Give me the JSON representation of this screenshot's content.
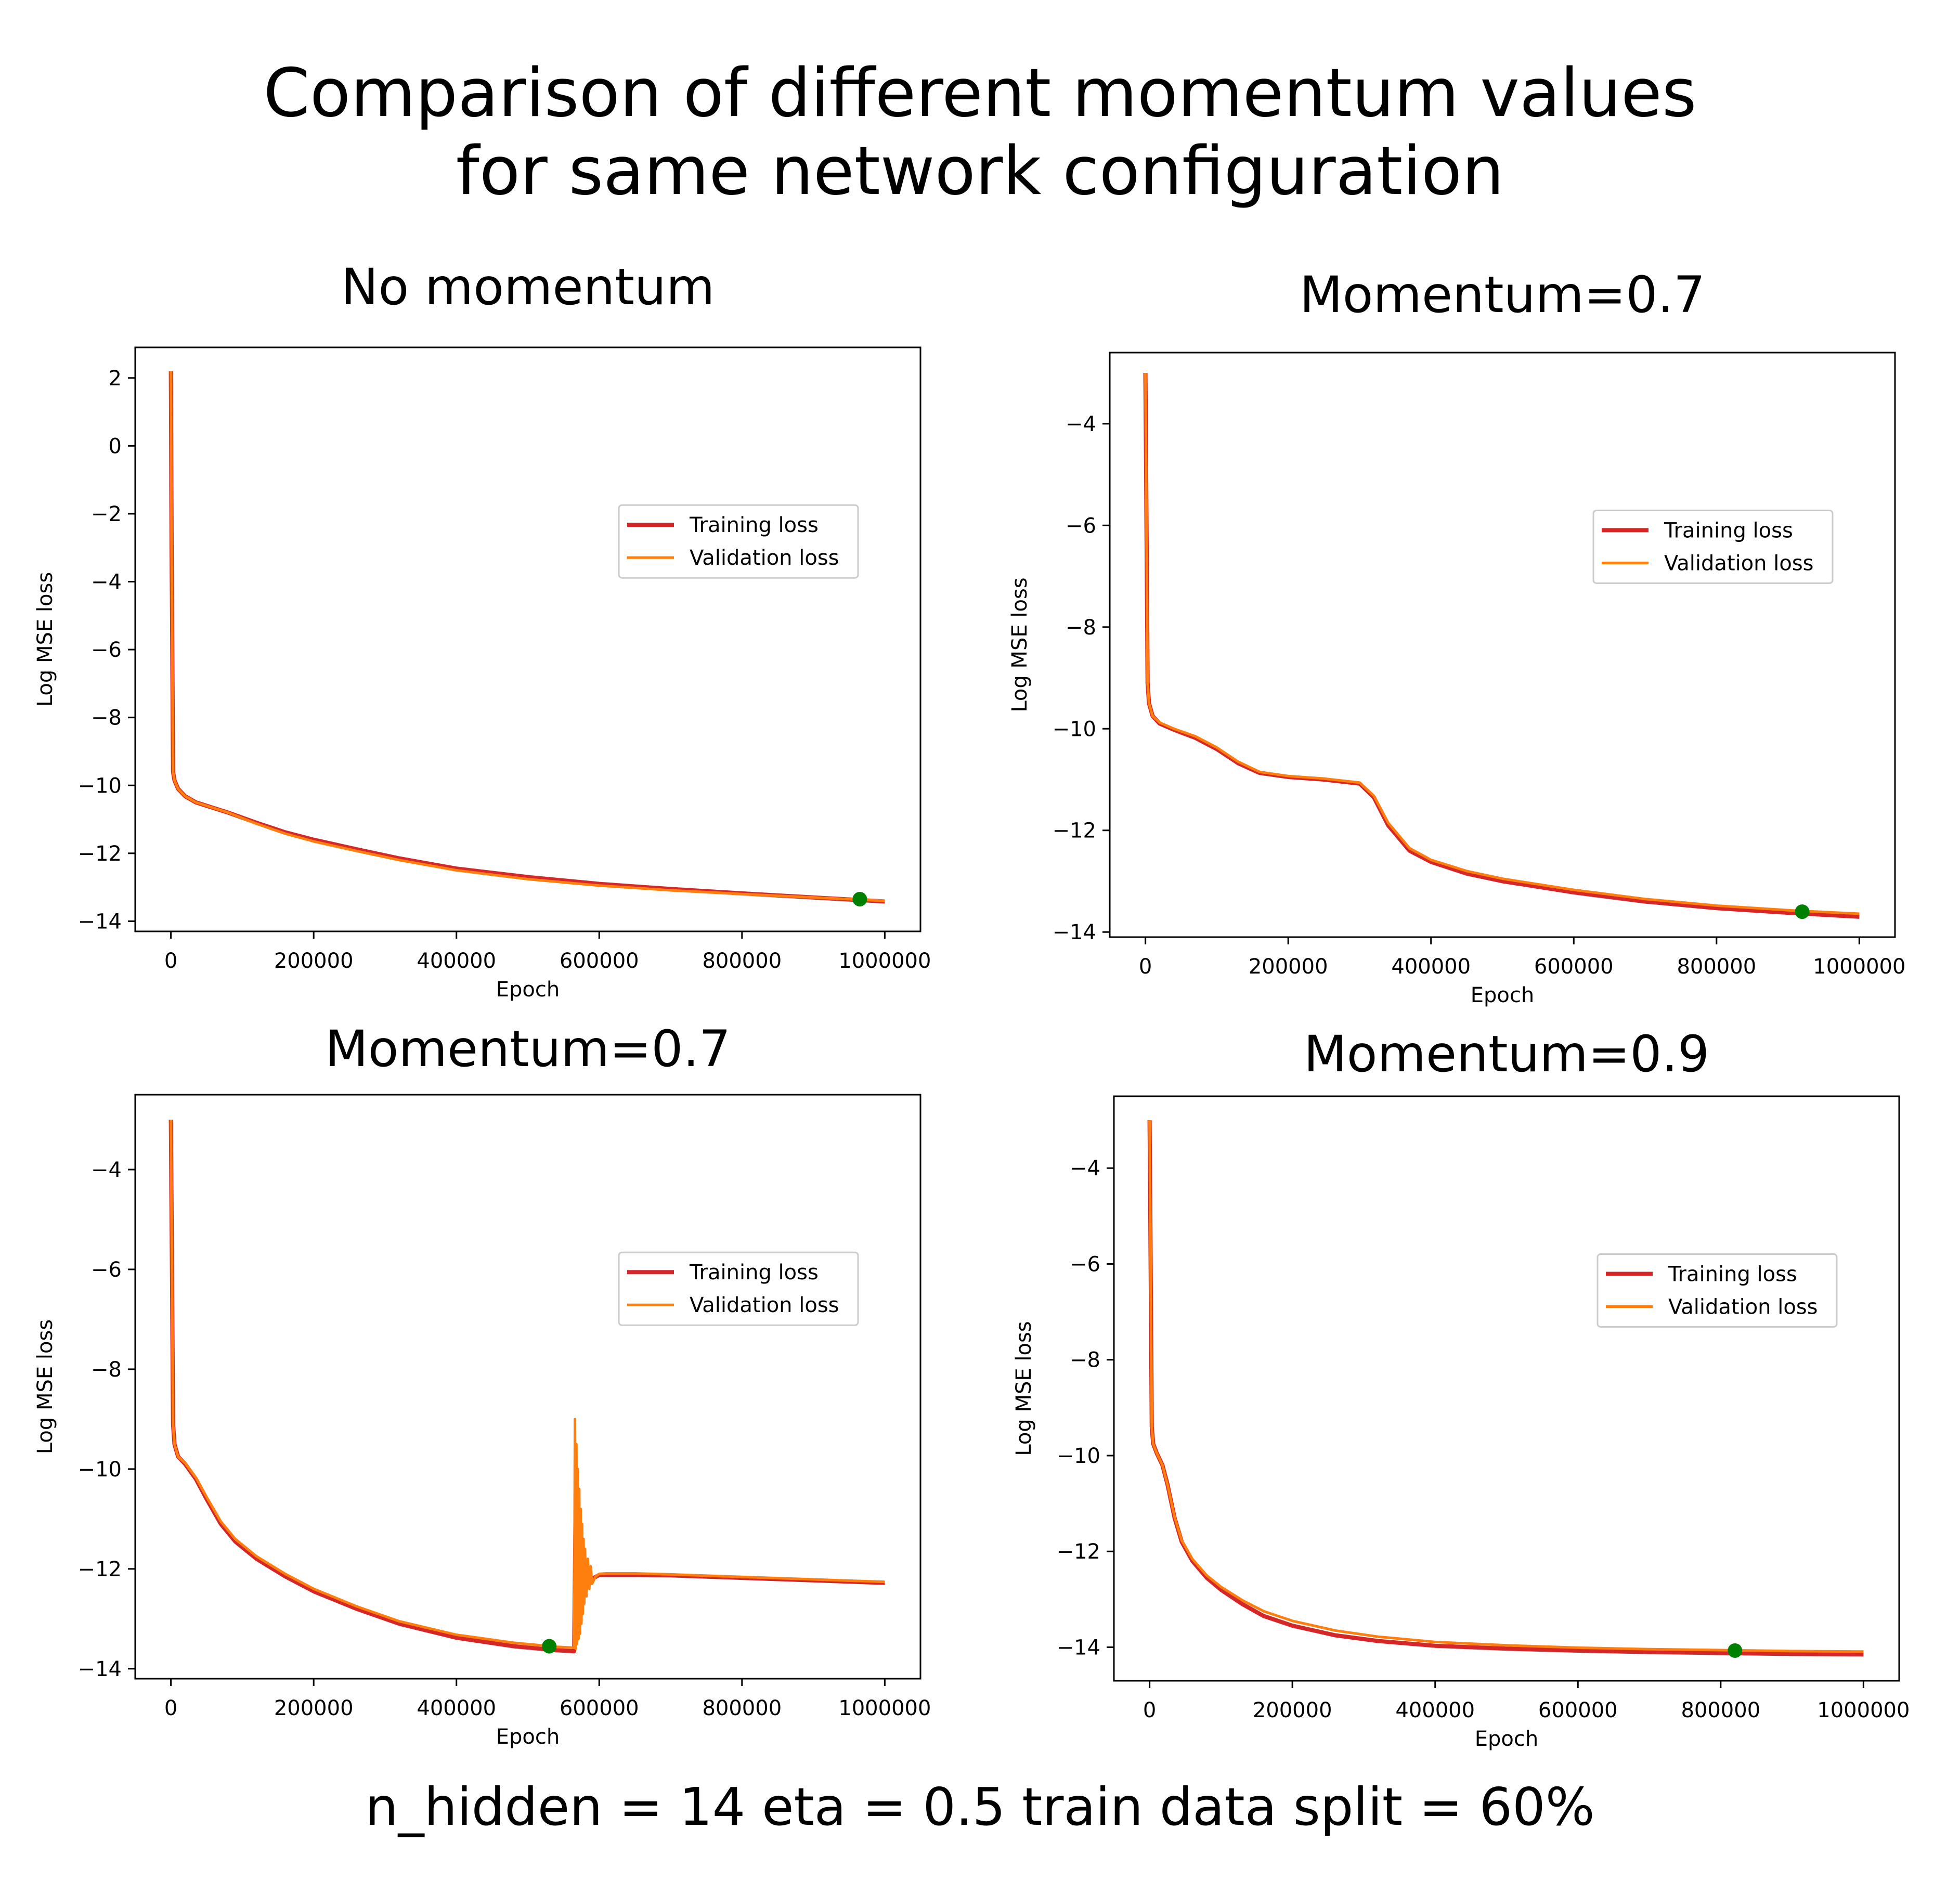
{
  "figure": {
    "title_line1": "Comparison of different momentum values",
    "title_line2": "for same network configuration",
    "footer": "n_hidden = 14 eta = 0.5 train data split = 60%"
  },
  "chart_data": [
    {
      "type": "line",
      "title": "No momentum",
      "xlabel": "Epoch",
      "ylabel": "Log MSE loss",
      "xlim": [
        -50000,
        1050000
      ],
      "ylim": [
        -14.3,
        2.9
      ],
      "xticks": [
        0,
        200000,
        400000,
        600000,
        800000,
        1000000
      ],
      "xtick_labels": [
        "0",
        "200000",
        "400000",
        "600000",
        "800000",
        "1000000"
      ],
      "yticks": [
        -14,
        -12,
        -10,
        -8,
        -6,
        -4,
        -2,
        0,
        2
      ],
      "ytick_labels": [
        "−14",
        "−12",
        "−10",
        "−8",
        "−6",
        "−4",
        "−2",
        "0",
        "2"
      ],
      "legend": {
        "location": "center-right",
        "entries": [
          "Training loss",
          "Validation loss"
        ]
      },
      "series": [
        {
          "name": "Training loss",
          "color": "#d62728",
          "x": [
            0,
            1000,
            3000,
            5000,
            10000,
            20000,
            35000,
            50000,
            80000,
            120000,
            160000,
            200000,
            260000,
            320000,
            400000,
            500000,
            600000,
            700000,
            800000,
            900000,
            1000000
          ],
          "y": [
            2.2,
            -3.0,
            -9.6,
            -9.85,
            -10.1,
            -10.32,
            -10.5,
            -10.6,
            -10.8,
            -11.1,
            -11.38,
            -11.6,
            -11.88,
            -12.15,
            -12.45,
            -12.7,
            -12.9,
            -13.05,
            -13.18,
            -13.3,
            -13.42
          ]
        },
        {
          "name": "Validation loss",
          "color": "#ff7f0e",
          "x": [
            0,
            1000,
            3000,
            5000,
            10000,
            20000,
            35000,
            50000,
            80000,
            120000,
            160000,
            200000,
            260000,
            320000,
            400000,
            500000,
            600000,
            700000,
            800000,
            900000,
            1000000
          ],
          "y": [
            2.2,
            -3.0,
            -9.6,
            -9.85,
            -10.1,
            -10.32,
            -10.5,
            -10.6,
            -10.8,
            -11.13,
            -11.42,
            -11.65,
            -11.93,
            -12.2,
            -12.5,
            -12.76,
            -12.95,
            -13.09,
            -13.2,
            -13.3,
            -13.4
          ]
        }
      ],
      "marker": {
        "x": 965000,
        "y": -13.35,
        "color": "#008000"
      }
    },
    {
      "type": "line",
      "title": "Momentum=0.7",
      "xlabel": "Epoch",
      "ylabel": "Log MSE loss",
      "xlim": [
        -50000,
        1050000
      ],
      "ylim": [
        -14.1,
        -2.6
      ],
      "xticks": [
        0,
        200000,
        400000,
        600000,
        800000,
        1000000
      ],
      "xtick_labels": [
        "0",
        "200000",
        "400000",
        "600000",
        "800000",
        "1000000"
      ],
      "yticks": [
        -14,
        -12,
        -10,
        -8,
        -6,
        -4
      ],
      "ytick_labels": [
        "−14",
        "−12",
        "−10",
        "−8",
        "−6",
        "−4"
      ],
      "legend": {
        "location": "center-right",
        "entries": [
          "Training loss",
          "Validation loss"
        ]
      },
      "series": [
        {
          "name": "Training loss",
          "color": "#d62728",
          "x": [
            0,
            1000,
            3000,
            5000,
            10000,
            20000,
            40000,
            70000,
            100000,
            130000,
            160000,
            200000,
            250000,
            300000,
            320000,
            340000,
            370000,
            400000,
            450000,
            500000,
            600000,
            700000,
            800000,
            900000,
            1000000
          ],
          "y": [
            -3.0,
            -5.0,
            -9.1,
            -9.5,
            -9.75,
            -9.9,
            -10.02,
            -10.18,
            -10.4,
            -10.68,
            -10.87,
            -10.95,
            -11.0,
            -11.08,
            -11.35,
            -11.9,
            -12.4,
            -12.62,
            -12.85,
            -13.0,
            -13.22,
            -13.4,
            -13.53,
            -13.62,
            -13.7
          ]
        },
        {
          "name": "Validation loss",
          "color": "#ff7f0e",
          "x": [
            0,
            1000,
            3000,
            5000,
            10000,
            20000,
            40000,
            70000,
            100000,
            130000,
            160000,
            200000,
            250000,
            300000,
            320000,
            340000,
            370000,
            400000,
            450000,
            500000,
            600000,
            700000,
            800000,
            900000,
            1000000
          ],
          "y": [
            -3.0,
            -5.0,
            -9.1,
            -9.5,
            -9.75,
            -9.88,
            -10.0,
            -10.15,
            -10.37,
            -10.65,
            -10.85,
            -10.93,
            -10.98,
            -11.06,
            -11.32,
            -11.85,
            -12.35,
            -12.58,
            -12.8,
            -12.95,
            -13.17,
            -13.35,
            -13.48,
            -13.57,
            -13.64
          ]
        }
      ],
      "marker": {
        "x": 920000,
        "y": -13.6,
        "color": "#008000"
      }
    },
    {
      "type": "line",
      "title": "Momentum=0.7",
      "xlabel": "Epoch",
      "ylabel": "Log MSE loss",
      "xlim": [
        -50000,
        1050000
      ],
      "ylim": [
        -14.2,
        -2.5
      ],
      "xticks": [
        0,
        200000,
        400000,
        600000,
        800000,
        1000000
      ],
      "xtick_labels": [
        "0",
        "200000",
        "400000",
        "600000",
        "800000",
        "1000000"
      ],
      "yticks": [
        -14,
        -12,
        -10,
        -8,
        -6,
        -4
      ],
      "ytick_labels": [
        "−14",
        "−12",
        "−10",
        "−8",
        "−6",
        "−4"
      ],
      "legend": {
        "location": "center-right",
        "entries": [
          "Training loss",
          "Validation loss"
        ]
      },
      "series": [
        {
          "name": "Training loss",
          "color": "#d62728",
          "x": [
            0,
            1000,
            3000,
            5000,
            10000,
            20000,
            35000,
            50000,
            70000,
            90000,
            120000,
            160000,
            200000,
            260000,
            320000,
            400000,
            480000,
            540000,
            565000,
            567000,
            568000,
            570000,
            575000,
            580000,
            590000,
            600000,
            650000,
            700000,
            800000,
            900000,
            1000000
          ],
          "y": [
            -3.0,
            -5.0,
            -9.1,
            -9.5,
            -9.75,
            -9.9,
            -10.2,
            -10.6,
            -11.1,
            -11.45,
            -11.8,
            -12.15,
            -12.45,
            -12.8,
            -13.1,
            -13.38,
            -13.55,
            -13.63,
            -13.65,
            -10.5,
            -12.0,
            -12.6,
            -12.7,
            -12.4,
            -12.2,
            -12.12,
            -12.12,
            -12.13,
            -12.18,
            -12.23,
            -12.28
          ]
        },
        {
          "name": "Validation loss",
          "color": "#ff7f0e",
          "x": [
            0,
            1000,
            3000,
            5000,
            10000,
            20000,
            35000,
            50000,
            70000,
            90000,
            120000,
            160000,
            200000,
            260000,
            320000,
            400000,
            480000,
            540000,
            565000,
            566000,
            567000,
            568000,
            569000,
            570000,
            571000,
            572000,
            573000,
            574000,
            575000,
            576000,
            577000,
            578000,
            579000,
            580000,
            582000,
            584000,
            586000,
            588000,
            590000,
            595000,
            600000,
            610000,
            650000,
            700000,
            800000,
            900000,
            1000000
          ],
          "y": [
            -3.0,
            -5.0,
            -9.1,
            -9.5,
            -9.75,
            -9.88,
            -10.17,
            -10.56,
            -11.05,
            -11.4,
            -11.75,
            -12.1,
            -12.4,
            -12.75,
            -13.05,
            -13.32,
            -13.48,
            -13.56,
            -13.58,
            -9.0,
            -13.6,
            -9.5,
            -13.5,
            -10.0,
            -13.4,
            -10.4,
            -13.3,
            -10.8,
            -13.1,
            -11.1,
            -12.9,
            -11.4,
            -12.7,
            -11.6,
            -12.55,
            -11.8,
            -12.4,
            -11.95,
            -12.3,
            -12.15,
            -12.1,
            -12.09,
            -12.09,
            -12.11,
            -12.16,
            -12.21,
            -12.26
          ]
        }
      ],
      "marker": {
        "x": 530000,
        "y": -13.55,
        "color": "#008000"
      }
    },
    {
      "type": "line",
      "title": "Momentum=0.9",
      "xlabel": "Epoch",
      "ylabel": "Log MSE loss",
      "xlim": [
        -50000,
        1050000
      ],
      "ylim": [
        -14.7,
        -2.5
      ],
      "xticks": [
        0,
        200000,
        400000,
        600000,
        800000,
        1000000
      ],
      "xtick_labels": [
        "0",
        "200000",
        "400000",
        "600000",
        "800000",
        "1000000"
      ],
      "yticks": [
        -14,
        -12,
        -10,
        -8,
        -6,
        -4
      ],
      "ytick_labels": [
        "−14",
        "−12",
        "−10",
        "−8",
        "−6",
        "−4"
      ],
      "legend": {
        "location": "center-right",
        "entries": [
          "Training loss",
          "Validation loss"
        ]
      },
      "series": [
        {
          "name": "Training loss",
          "color": "#d62728",
          "x": [
            0,
            1000,
            3000,
            5000,
            10000,
            18000,
            25000,
            35000,
            45000,
            60000,
            80000,
            100000,
            130000,
            160000,
            200000,
            260000,
            320000,
            400000,
            500000,
            600000,
            700000,
            800000,
            900000,
            1000000
          ],
          "y": [
            -3.0,
            -5.0,
            -9.4,
            -9.75,
            -9.95,
            -10.2,
            -10.6,
            -11.3,
            -11.8,
            -12.2,
            -12.55,
            -12.8,
            -13.1,
            -13.35,
            -13.55,
            -13.75,
            -13.87,
            -13.97,
            -14.03,
            -14.07,
            -14.1,
            -14.12,
            -14.14,
            -14.15
          ]
        },
        {
          "name": "Validation loss",
          "color": "#ff7f0e",
          "x": [
            0,
            1000,
            3000,
            5000,
            10000,
            18000,
            25000,
            35000,
            45000,
            60000,
            80000,
            100000,
            130000,
            160000,
            200000,
            260000,
            320000,
            400000,
            500000,
            600000,
            700000,
            800000,
            900000,
            1000000
          ],
          "y": [
            -3.0,
            -5.0,
            -9.4,
            -9.75,
            -9.95,
            -10.2,
            -10.6,
            -11.28,
            -11.77,
            -12.16,
            -12.5,
            -12.74,
            -13.02,
            -13.25,
            -13.45,
            -13.65,
            -13.78,
            -13.89,
            -13.96,
            -14.01,
            -14.04,
            -14.06,
            -14.08,
            -14.09
          ]
        }
      ],
      "marker": {
        "x": 820000,
        "y": -14.07,
        "color": "#008000"
      }
    }
  ]
}
